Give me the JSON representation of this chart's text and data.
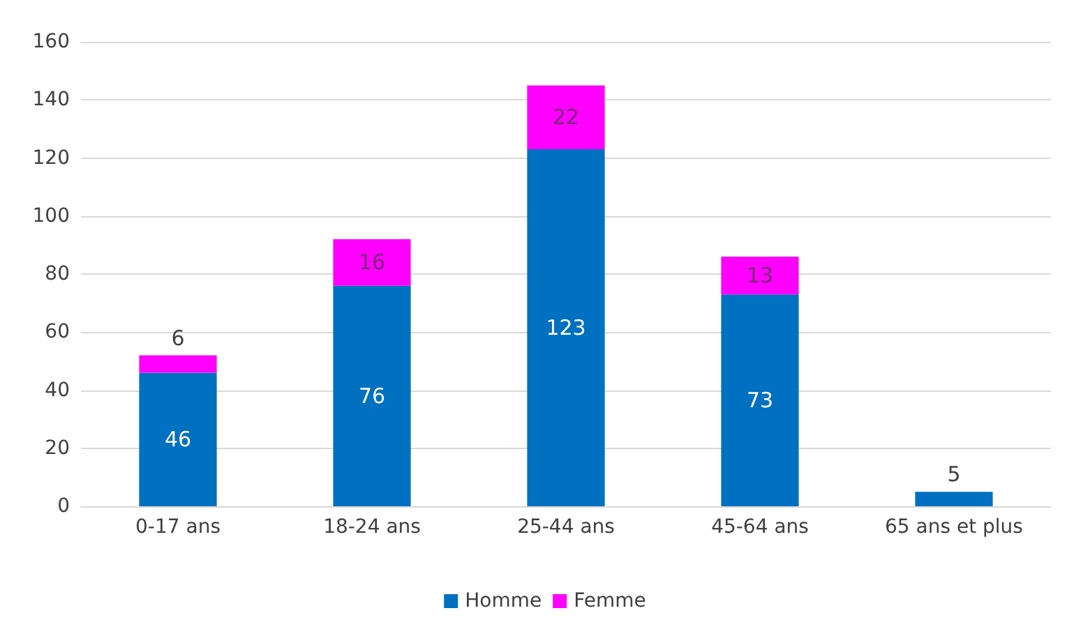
{
  "chart_data": {
    "type": "bar",
    "stacked": true,
    "categories": [
      "0-17 ans",
      "18-24 ans",
      "25-44 ans",
      "45-64 ans",
      "65 ans et plus"
    ],
    "series": [
      {
        "name": "Homme",
        "color": "#0070c0",
        "values": [
          46,
          76,
          123,
          73,
          5
        ]
      },
      {
        "name": "Femme",
        "color": "#ff00ff",
        "values": [
          6,
          16,
          22,
          13,
          null
        ]
      }
    ],
    "ylim": [
      0,
      160
    ],
    "yticks": [
      0,
      20,
      40,
      60,
      80,
      100,
      120,
      140,
      160
    ],
    "grid": "y",
    "legend": "bottom",
    "data_labels": true
  }
}
